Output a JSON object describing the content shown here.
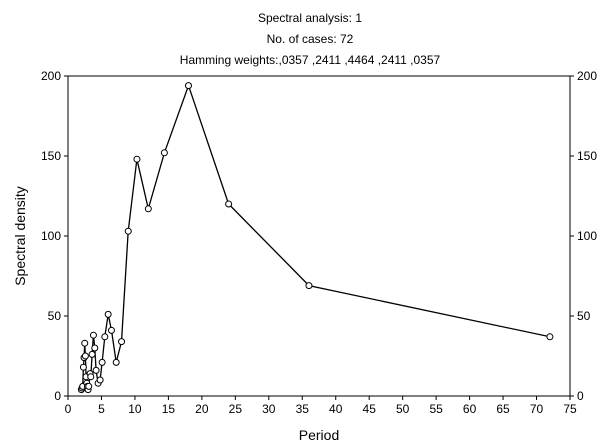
{
  "chart_data": {
    "type": "line",
    "title_lines": [
      "Spectral analysis: 1",
      "No. of cases: 72",
      "Hamming weights:,0357 ,2411 ,4464 ,2411 ,0357"
    ],
    "xlabel": "Period",
    "ylabel": "Spectral density",
    "xlim": [
      0,
      75
    ],
    "ylim": [
      0,
      200
    ],
    "xticks": [
      0,
      5,
      10,
      15,
      20,
      25,
      30,
      35,
      40,
      45,
      50,
      55,
      60,
      65,
      70,
      75
    ],
    "yticks": [
      0,
      50,
      100,
      150,
      200
    ],
    "grid": false,
    "marker": "open-circle",
    "series": [
      {
        "points": [
          [
            2.0,
            4
          ],
          [
            2.1,
            5
          ],
          [
            2.2,
            6
          ],
          [
            2.3,
            18
          ],
          [
            2.4,
            24
          ],
          [
            2.5,
            33
          ],
          [
            2.6,
            25
          ],
          [
            2.7,
            12
          ],
          [
            2.8,
            8
          ],
          [
            2.9,
            6
          ],
          [
            3.0,
            4
          ],
          [
            3.1,
            6
          ],
          [
            3.3,
            14
          ],
          [
            3.4,
            12
          ],
          [
            3.6,
            26
          ],
          [
            3.8,
            38
          ],
          [
            4.0,
            30
          ],
          [
            4.2,
            16
          ],
          [
            4.5,
            8
          ],
          [
            4.8,
            10
          ],
          [
            5.1,
            21
          ],
          [
            5.5,
            37
          ],
          [
            6.0,
            51
          ],
          [
            6.5,
            41
          ],
          [
            7.2,
            21
          ],
          [
            8.0,
            34
          ],
          [
            9.0,
            103
          ],
          [
            10.3,
            148
          ],
          [
            12.0,
            117
          ],
          [
            14.4,
            152
          ],
          [
            18.0,
            194
          ],
          [
            24.0,
            120
          ],
          [
            36.0,
            69
          ],
          [
            72.0,
            37
          ]
        ]
      }
    ]
  }
}
